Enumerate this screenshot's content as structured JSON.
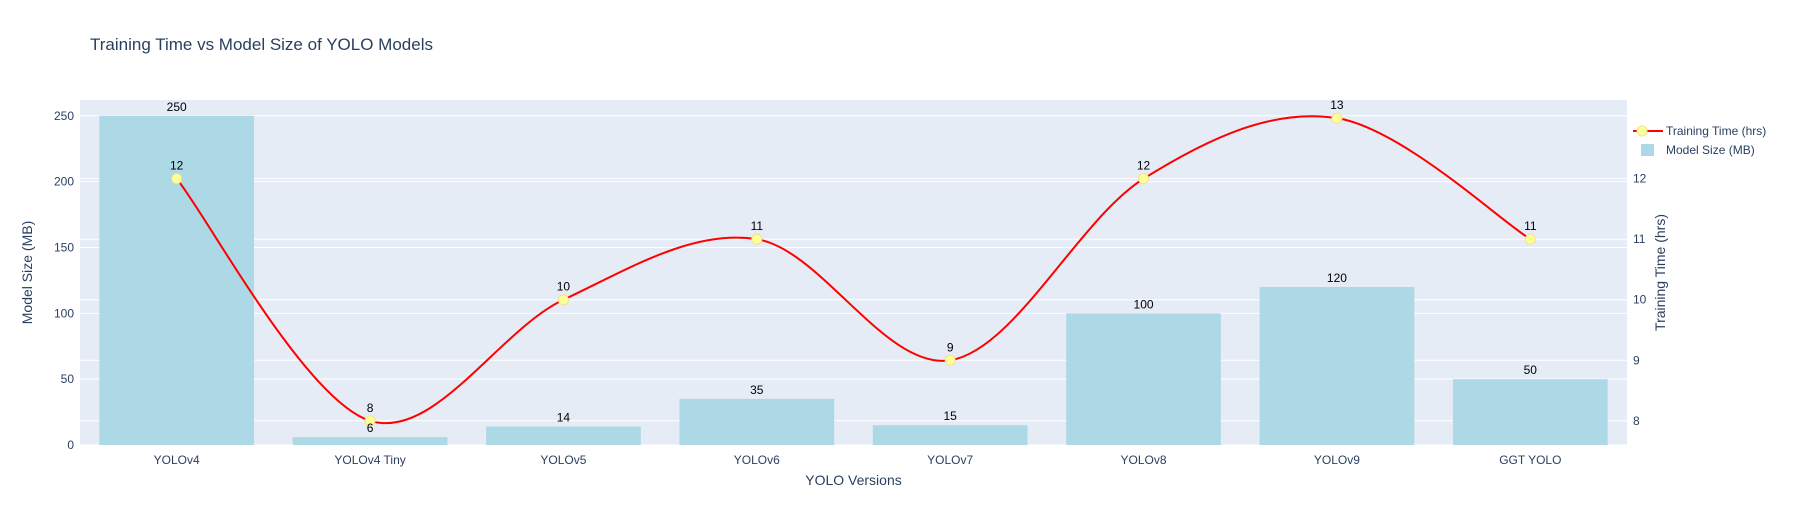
{
  "chart_data": {
    "type": "bar",
    "title": "Training Time vs Model Size of YOLO Models",
    "xlabel": "YOLO Versions",
    "ylabel": "Model Size (MB)",
    "y2label": "Training Time (hrs)",
    "categories": [
      "YOLOv4",
      "YOLOv4 Tiny",
      "YOLOv5",
      "YOLOv6",
      "YOLOv7",
      "YOLOv8",
      "YOLOv9",
      "GGT YOLO"
    ],
    "ylim": [
      0,
      262
    ],
    "y2lim": [
      7.6,
      13.3
    ],
    "yticks": [
      0,
      50,
      100,
      150,
      200,
      250
    ],
    "y2ticks": [
      8,
      9,
      10,
      11,
      12
    ],
    "grid": true,
    "legend_position": "top-right",
    "series": [
      {
        "name": "Model Size (MB)",
        "kind": "bar",
        "axis": "y",
        "color": "#add8e6",
        "values": [
          250,
          6,
          14,
          35,
          15,
          100,
          120,
          50
        ]
      },
      {
        "name": "Training Time (hrs)",
        "kind": "line",
        "axis": "y2",
        "color": "#ff0000",
        "marker_color": "#ffff99",
        "values": [
          12,
          8,
          10,
          11,
          9,
          12,
          13,
          11
        ]
      }
    ],
    "colors": {
      "plot_bg": "#e5ecf6",
      "grid": "#ffffff",
      "text": "#2a3f5f"
    }
  }
}
